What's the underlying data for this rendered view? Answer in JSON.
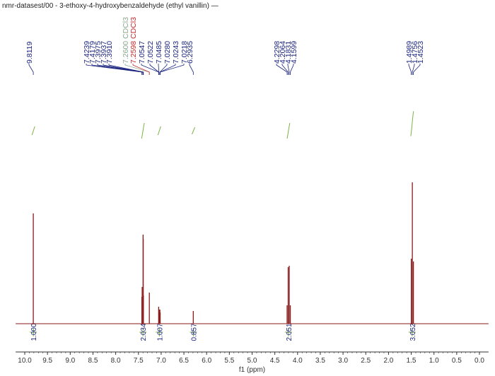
{
  "title": "nmr-datasest/00 - 3-ethoxy-4-hydroxybenzaldehyde (ethyl vanillin) —",
  "colors": {
    "spectrum": "#8b1a1a",
    "peak_label": "#1a237e",
    "solvent_label": "#8fa58f",
    "solvent_label_alt": "#c62828",
    "integral": "#7cb342",
    "integral_value": "#1a237e",
    "axis": "#333333"
  },
  "chart_data": {
    "type": "line",
    "xlabel": "f1 (ppm)",
    "xlim": [
      10.2,
      -0.2
    ],
    "x_reversed": true,
    "ticks": [
      "10.0",
      "9.5",
      "9.0",
      "8.5",
      "8.0",
      "7.5",
      "7.0",
      "6.5",
      "6.0",
      "5.5",
      "5.0",
      "4.5",
      "4.0",
      "3.5",
      "3.0",
      "2.5",
      "2.0",
      "1.5",
      "1.0",
      "0.5",
      "0.0"
    ],
    "peaks": [
      {
        "ppm": 9.8119,
        "height": 0.78
      },
      {
        "ppm": 7.4239,
        "height": 0.19
      },
      {
        "ppm": 7.4179,
        "height": 0.26
      },
      {
        "ppm": 7.3975,
        "height": 0.63
      },
      {
        "ppm": 7.3937,
        "height": 0.6
      },
      {
        "ppm": 7.391,
        "height": 0.2
      },
      {
        "ppm": 7.2598,
        "height": 0.22
      },
      {
        "ppm": 7.0547,
        "height": 0.12
      },
      {
        "ppm": 7.0522,
        "height": 0.1
      },
      {
        "ppm": 7.0485,
        "height": 0.1
      },
      {
        "ppm": 7.028,
        "height": 0.1
      },
      {
        "ppm": 7.0243,
        "height": 0.08
      },
      {
        "ppm": 7.0218,
        "height": 0.08
      },
      {
        "ppm": 6.2935,
        "height": 0.09
      },
      {
        "ppm": 4.2298,
        "height": 0.13
      },
      {
        "ppm": 4.2064,
        "height": 0.4
      },
      {
        "ppm": 4.1831,
        "height": 0.41
      },
      {
        "ppm": 4.1599,
        "height": 0.13
      },
      {
        "ppm": 1.4989,
        "height": 0.46
      },
      {
        "ppm": 1.4756,
        "height": 1.0
      },
      {
        "ppm": 1.4523,
        "height": 0.44
      }
    ],
    "peak_labels": [
      {
        "text": "9.8119",
        "solvent": false
      },
      {
        "text": "7.4239",
        "solvent": false
      },
      {
        "text": "7.4179",
        "solvent": false
      },
      {
        "text": "7.3975",
        "solvent": false
      },
      {
        "text": "7.3937",
        "solvent": false
      },
      {
        "text": "7.3910",
        "solvent": false
      },
      {
        "text": "7.2600 CDCl3",
        "solvent": "alt1"
      },
      {
        "text": "7.2598 CDCl3",
        "solvent": "alt2"
      },
      {
        "text": "7.0547",
        "solvent": false
      },
      {
        "text": "7.0522",
        "solvent": false
      },
      {
        "text": "7.0485",
        "solvent": false
      },
      {
        "text": "7.0280",
        "solvent": false
      },
      {
        "text": "7.0243",
        "solvent": false
      },
      {
        "text": "7.0218",
        "solvent": false
      },
      {
        "text": "6.2935",
        "solvent": false
      },
      {
        "text": "4.2298",
        "solvent": false
      },
      {
        "text": "4.2064",
        "solvent": false
      },
      {
        "text": "4.1831",
        "solvent": false
      },
      {
        "text": "4.1599",
        "solvent": false
      },
      {
        "text": "1.4989",
        "solvent": false
      },
      {
        "text": "1.4756",
        "solvent": false
      },
      {
        "text": "1.4523",
        "solvent": false
      }
    ],
    "integrals": [
      {
        "ppm": 9.81,
        "value": "1.000",
        "rise": 0.55
      },
      {
        "ppm": 7.4,
        "value": "2.034",
        "rise": 1.0
      },
      {
        "ppm": 7.04,
        "value": "1.007",
        "rise": 0.55
      },
      {
        "ppm": 6.29,
        "value": "0.857",
        "rise": 0.45
      },
      {
        "ppm": 4.2,
        "value": "2.051",
        "rise": 1.0
      },
      {
        "ppm": 1.48,
        "value": "3.052",
        "rise": 1.6
      }
    ]
  }
}
